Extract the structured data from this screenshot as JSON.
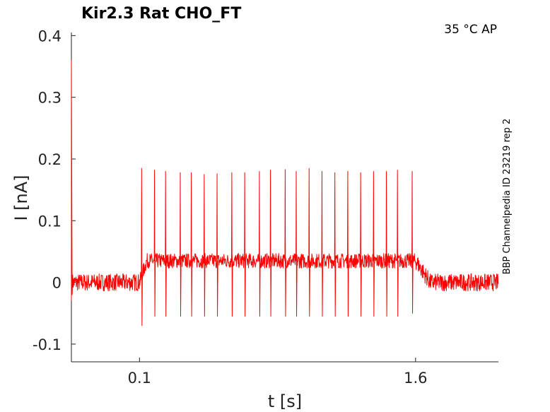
{
  "chart_data": {
    "type": "line",
    "title": "Kir2.3  Rat  CHO_FT",
    "annotation_top_right": "35 °C  AP",
    "side_label": "BBP Channelpedia ID 23219 rep 2",
    "xlabel": "t [s]",
    "ylabel": "I [nA]",
    "xlim": [
      -0.27,
      2.05
    ],
    "ylim": [
      -0.115,
      0.405
    ],
    "x_ticks": [
      0.1,
      1.6
    ],
    "x_tick_labels": [
      "0.1",
      "1.6"
    ],
    "y_ticks": [
      -0.1,
      0,
      0.1,
      0.2,
      0.3,
      0.4
    ],
    "y_tick_labels": [
      "-0.1",
      "0",
      "0.1",
      "0.2",
      "0.3",
      "0.4"
    ],
    "grid": false,
    "series": [
      {
        "color": "#ff0000",
        "baseline_before": 0.0,
        "step_on": 0.1,
        "plateau": 0.035,
        "step_off": 1.6,
        "baseline_after": 0.0,
        "initial_spike_x": -0.27,
        "initial_spike_y": 0.36,
        "spike_times": [
          0.11,
          0.18,
          0.24,
          0.32,
          0.38,
          0.45,
          0.52,
          0.6,
          0.67,
          0.75,
          0.81,
          0.89,
          0.95,
          1.02,
          1.09,
          1.16,
          1.23,
          1.3,
          1.37,
          1.44,
          1.5,
          1.58
        ],
        "spike_peaks": [
          0.185,
          0.182,
          0.18,
          0.178,
          0.178,
          0.175,
          0.176,
          0.178,
          0.178,
          0.18,
          0.182,
          0.183,
          0.18,
          0.185,
          0.18,
          0.178,
          0.18,
          0.178,
          0.18,
          0.18,
          0.182,
          0.18
        ],
        "spike_troughs": [
          -0.07,
          -0.055,
          -0.055,
          -0.055,
          -0.055,
          -0.055,
          -0.055,
          -0.055,
          -0.055,
          -0.055,
          -0.055,
          -0.055,
          -0.055,
          -0.055,
          -0.055,
          -0.055,
          -0.055,
          -0.055,
          -0.055,
          -0.055,
          -0.055,
          -0.05
        ]
      }
    ]
  }
}
